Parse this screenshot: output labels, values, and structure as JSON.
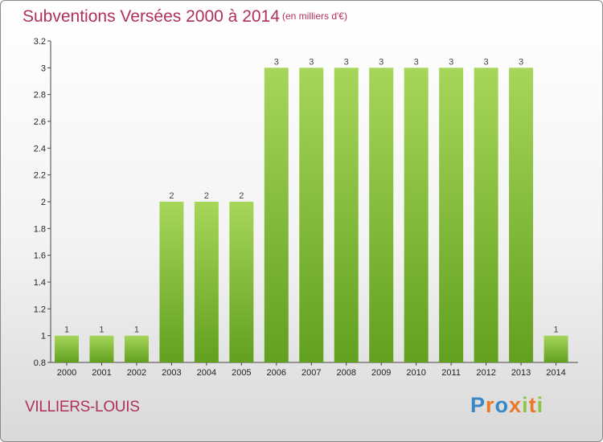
{
  "title": "Subventions Versées 2000 à 2014",
  "subtitle": "(en milliers d'€)",
  "commune": "VILLIERS-LOUIS",
  "logo": {
    "letters": [
      "P",
      "r",
      "o",
      "x",
      "i",
      "t",
      "i"
    ],
    "colors": [
      "#3a87c8",
      "#e9782a",
      "#3a87c8",
      "#e9782a",
      "#8bc63f",
      "#e9782a",
      "#8bc63f"
    ]
  },
  "chart_data": {
    "type": "bar",
    "categories": [
      "2000",
      "2001",
      "2002",
      "2003",
      "2004",
      "2005",
      "2006",
      "2007",
      "2008",
      "2009",
      "2010",
      "2011",
      "2012",
      "2013",
      "2014"
    ],
    "values": [
      1,
      1,
      1,
      2,
      2,
      2,
      3,
      3,
      3,
      3,
      3,
      3,
      3,
      3,
      1
    ],
    "value_labels": [
      "1",
      "1",
      "1",
      "2",
      "2",
      "2",
      "3",
      "3",
      "3",
      "3",
      "3",
      "3",
      "3",
      "3",
      "1"
    ],
    "ylim": [
      0.8,
      3.2
    ],
    "yticks": [
      0.8,
      1,
      1.2,
      1.4,
      1.6,
      1.8,
      2,
      2.2,
      2.4,
      2.6,
      2.8,
      3,
      3.2
    ],
    "ytick_labels": [
      "0.8",
      "1",
      "1.2",
      "1.4",
      "1.6",
      "1.8",
      "2",
      "2.2",
      "2.4",
      "2.6",
      "2.8",
      "3",
      "3.2"
    ],
    "grid": false,
    "bar_color": "#8cc63f",
    "xlabel": "",
    "ylabel": ""
  }
}
